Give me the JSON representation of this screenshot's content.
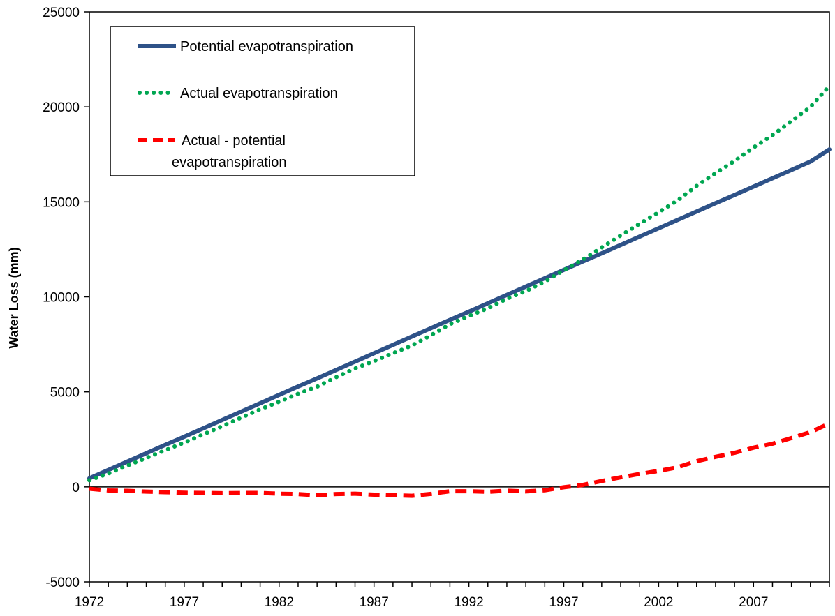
{
  "chart_data": {
    "type": "line",
    "title": "",
    "xlabel": "",
    "ylabel": "Water Loss (mm)",
    "xlim": [
      1972,
      2011
    ],
    "ylim": [
      -5000,
      25000
    ],
    "y_ticks": [
      -5000,
      0,
      5000,
      10000,
      15000,
      20000,
      25000
    ],
    "x_tick_labels": [
      1972,
      1977,
      1982,
      1987,
      1992,
      1997,
      2002,
      2007
    ],
    "grid": false,
    "legend_position": "top-left",
    "zero_line": true,
    "colors": {
      "potential": "#2E5288",
      "actual": "#00A651",
      "difference": "#FF0000"
    },
    "x": [
      1972,
      1973,
      1974,
      1975,
      1976,
      1977,
      1978,
      1979,
      1980,
      1981,
      1982,
      1983,
      1984,
      1985,
      1986,
      1987,
      1988,
      1989,
      1990,
      1991,
      1992,
      1993,
      1994,
      1995,
      1996,
      1997,
      1998,
      1999,
      2000,
      2001,
      2002,
      2003,
      2004,
      2005,
      2006,
      2007,
      2008,
      2009,
      2010,
      2011
    ],
    "series": [
      {
        "name": "Potential evapotranspiration",
        "style": "solid",
        "values": [
          450,
          890,
          1330,
          1770,
          2210,
          2640,
          3080,
          3520,
          3960,
          4400,
          4840,
          5280,
          5710,
          6150,
          6590,
          7030,
          7470,
          7910,
          8350,
          8790,
          9220,
          9660,
          10100,
          10540,
          10980,
          11420,
          11860,
          12290,
          12730,
          13170,
          13610,
          14050,
          14490,
          14930,
          15360,
          15800,
          16240,
          16680,
          17120,
          17760
        ]
      },
      {
        "name": "Actual evapotranspiration",
        "style": "dotted",
        "values": [
          350,
          700,
          1120,
          1520,
          1930,
          2330,
          2760,
          3190,
          3640,
          4080,
          4480,
          4900,
          5270,
          5770,
          6230,
          6620,
          7030,
          7440,
          7980,
          8560,
          8990,
          9400,
          9900,
          10300,
          10800,
          11400,
          11960,
          12600,
          13230,
          13850,
          14450,
          15080,
          15840,
          16510,
          17150,
          17860,
          18510,
          19250,
          20000,
          21100
        ]
      },
      {
        "name": "Actual - potential evapotranspiration",
        "style": "dashed",
        "values": [
          -100,
          -190,
          -210,
          -250,
          -280,
          -310,
          -320,
          -330,
          -320,
          -320,
          -360,
          -380,
          -440,
          -380,
          -360,
          -410,
          -440,
          -470,
          -370,
          -230,
          -230,
          -260,
          -200,
          -240,
          -180,
          -20,
          100,
          310,
          500,
          680,
          840,
          1030,
          1350,
          1580,
          1790,
          2060,
          2270,
          2570,
          2880,
          3340
        ]
      }
    ]
  }
}
